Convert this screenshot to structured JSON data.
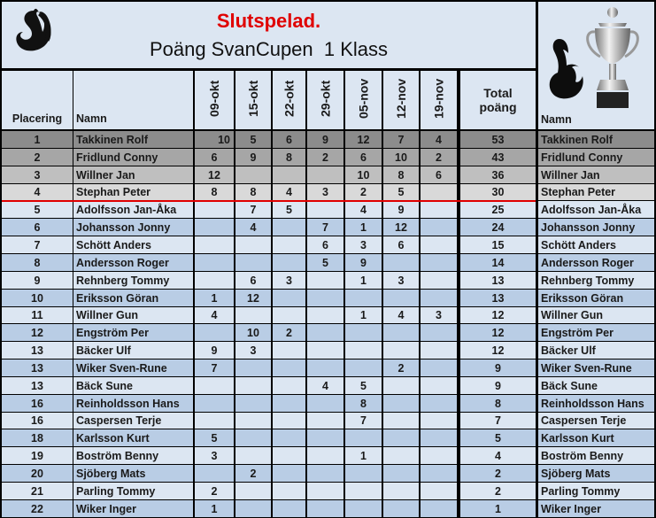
{
  "header": {
    "title": "Slutspelad.",
    "subtitle": "Poäng SvanCupen  1 Klass",
    "logo_icon": "swan-icon",
    "trophy_icon": "trophy-icon"
  },
  "columns": {
    "placering": "Placering",
    "namn": "Namn",
    "dates": [
      "09-okt",
      "15-okt",
      "22-okt",
      "29-okt",
      "05-nov",
      "12-nov",
      "19-nov"
    ],
    "total": "Total poäng",
    "namn2": "Namn"
  },
  "colors": {
    "rank1": "#8c8c8c",
    "rank2": "#a6a6a6",
    "rank3": "#bfbfbf",
    "rank4": "#d9d9d9",
    "row_light": "#dce6f2",
    "row_dark": "#b9cde5",
    "cutoff_line": "#e00000",
    "title": "#e00000"
  },
  "rows": [
    {
      "place": "1",
      "name": "Takkinen Rolf",
      "scores": [
        "10",
        "5",
        "6",
        "9",
        "12",
        "7",
        "4"
      ],
      "total": "53"
    },
    {
      "place": "2",
      "name": "Fridlund Conny",
      "scores": [
        "6",
        "9",
        "8",
        "2",
        "6",
        "10",
        "2"
      ],
      "total": "43"
    },
    {
      "place": "3",
      "name": "Willner Jan",
      "scores": [
        "12",
        "",
        "",
        "",
        "10",
        "8",
        "6"
      ],
      "total": "36"
    },
    {
      "place": "4",
      "name": "Stephan Peter",
      "scores": [
        "8",
        "8",
        "4",
        "3",
        "2",
        "5",
        ""
      ],
      "total": "30"
    },
    {
      "place": "5",
      "name": "Adolfsson Jan-Åka",
      "scores": [
        "",
        "7",
        "5",
        "",
        "4",
        "9",
        ""
      ],
      "total": "25"
    },
    {
      "place": "6",
      "name": "Johansson Jonny",
      "scores": [
        "",
        "4",
        "",
        "7",
        "1",
        "12",
        ""
      ],
      "total": "24"
    },
    {
      "place": "7",
      "name": "Schött Anders",
      "scores": [
        "",
        "",
        "",
        "6",
        "3",
        "6",
        ""
      ],
      "total": "15"
    },
    {
      "place": "8",
      "name": "Andersson Roger",
      "scores": [
        "",
        "",
        "",
        "5",
        "9",
        "",
        ""
      ],
      "total": "14"
    },
    {
      "place": "9",
      "name": "Rehnberg Tommy",
      "scores": [
        "",
        "6",
        "3",
        "",
        "1",
        "3",
        ""
      ],
      "total": "13"
    },
    {
      "place": "10",
      "name": "Eriksson Göran",
      "scores": [
        "1",
        "12",
        "",
        "",
        "",
        "",
        ""
      ],
      "total": "13"
    },
    {
      "place": "11",
      "name": "Willner Gun",
      "scores": [
        "4",
        "",
        "",
        "",
        "1",
        "4",
        "3"
      ],
      "total": "12"
    },
    {
      "place": "12",
      "name": "Engström Per",
      "scores": [
        "",
        "10",
        "2",
        "",
        "",
        "",
        ""
      ],
      "total": "12"
    },
    {
      "place": "13",
      "name": "Bäcker Ulf",
      "scores": [
        "9",
        "3",
        "",
        "",
        "",
        "",
        ""
      ],
      "total": "12"
    },
    {
      "place": "13",
      "name": "Wiker Sven-Rune",
      "scores": [
        "7",
        "",
        "",
        "",
        "",
        "2",
        ""
      ],
      "total": "9"
    },
    {
      "place": "13",
      "name": "Bäck Sune",
      "scores": [
        "",
        "",
        "",
        "4",
        "5",
        "",
        ""
      ],
      "total": "9"
    },
    {
      "place": "16",
      "name": "Reinholdsson Hans",
      "scores": [
        "",
        "",
        "",
        "",
        "8",
        "",
        ""
      ],
      "total": "8"
    },
    {
      "place": "16",
      "name": "Caspersen Terje",
      "scores": [
        "",
        "",
        "",
        "",
        "7",
        "",
        ""
      ],
      "total": "7"
    },
    {
      "place": "18",
      "name": "Karlsson Kurt",
      "scores": [
        "5",
        "",
        "",
        "",
        "",
        "",
        ""
      ],
      "total": "5"
    },
    {
      "place": "19",
      "name": "Boström Benny",
      "scores": [
        "3",
        "",
        "",
        "",
        "1",
        "",
        ""
      ],
      "total": "4"
    },
    {
      "place": "20",
      "name": "Sjöberg Mats",
      "scores": [
        "",
        "2",
        "",
        "",
        "",
        "",
        ""
      ],
      "total": "2"
    },
    {
      "place": "21",
      "name": "Parling Tommy",
      "scores": [
        "2",
        "",
        "",
        "",
        "",
        "",
        ""
      ],
      "total": "2"
    },
    {
      "place": "22",
      "name": "Wiker Inger",
      "scores": [
        "1",
        "",
        "",
        "",
        "",
        "",
        ""
      ],
      "total": "1"
    }
  ]
}
